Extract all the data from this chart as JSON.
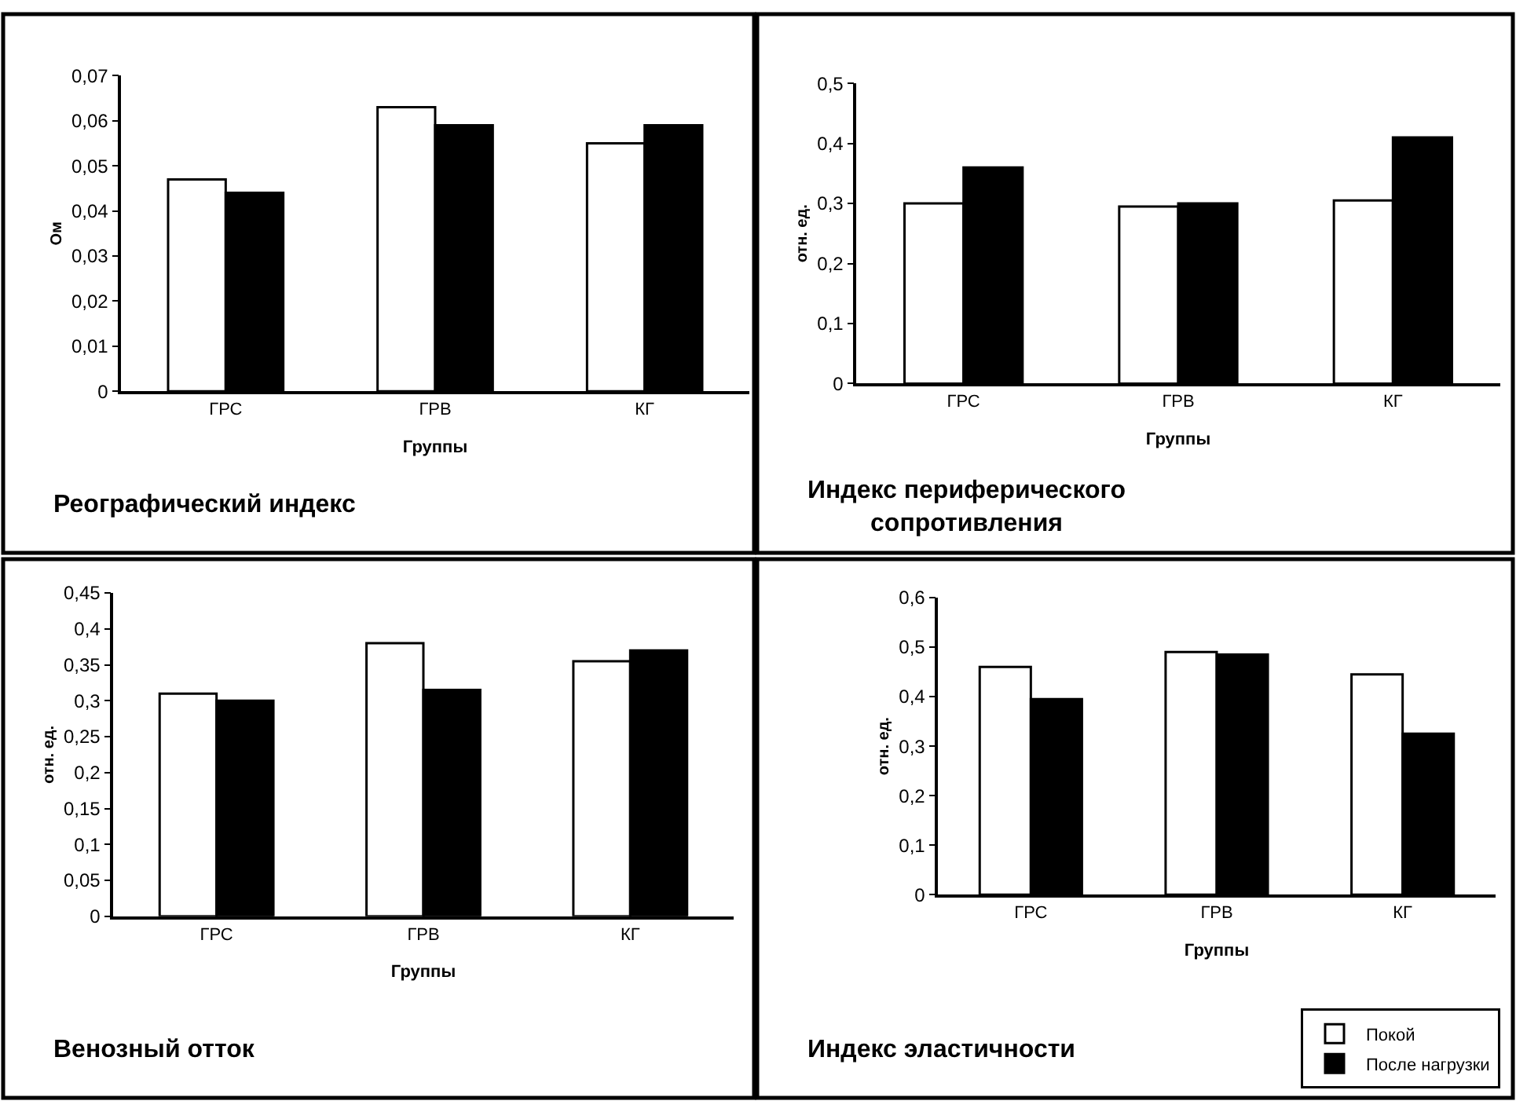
{
  "chart_data": [
    {
      "type": "bar",
      "title": "Реографический индекс",
      "xlabel": "Группы",
      "ylabel": "Ом",
      "categories": [
        "ГРС",
        "ГРВ",
        "КГ"
      ],
      "series": [
        {
          "color": "#ffffff",
          "values": [
            0.047,
            0.063,
            0.055
          ]
        },
        {
          "color": "#000000",
          "values": [
            0.044,
            0.059,
            0.059
          ]
        }
      ],
      "ylim": [
        0,
        0.07
      ],
      "yticks": [
        0,
        {
          "value": 0.01,
          "label": "0,01"
        },
        {
          "value": 0.02,
          "label": "0,02"
        },
        {
          "value": 0.03,
          "label": "0,03"
        },
        {
          "value": 0.04,
          "label": "0,04"
        },
        {
          "value": 0.05,
          "label": "0,05"
        },
        {
          "value": 0.06,
          "label": "0,06"
        },
        {
          "value": 0.07,
          "label": "0,07"
        }
      ],
      "grid": false
    },
    {
      "type": "bar",
      "title": "Индекс периферического\nсопротивления",
      "xlabel": "Группы",
      "ylabel": "отн. ед.",
      "categories": [
        "ГРС",
        "ГРВ",
        "КГ"
      ],
      "series": [
        {
          "color": "#ffffff",
          "values": [
            0.3,
            0.295,
            0.305
          ]
        },
        {
          "color": "#000000",
          "values": [
            0.36,
            0.3,
            0.41
          ]
        }
      ],
      "ylim": [
        0,
        0.5
      ],
      "yticks": [
        0,
        {
          "value": 0.1,
          "label": "0,1"
        },
        {
          "value": 0.2,
          "label": "0,2"
        },
        {
          "value": 0.3,
          "label": "0,3"
        },
        {
          "value": 0.4,
          "label": "0,4"
        },
        {
          "value": 0.5,
          "label": "0,5"
        }
      ],
      "grid": false
    },
    {
      "type": "bar",
      "title": "Венозный отток",
      "xlabel": "Группы",
      "ylabel": "отн. ед.",
      "categories": [
        "ГРС",
        "ГРВ",
        "КГ"
      ],
      "series": [
        {
          "color": "#ffffff",
          "values": [
            0.31,
            0.38,
            0.355
          ]
        },
        {
          "color": "#000000",
          "values": [
            0.3,
            0.315,
            0.37
          ]
        }
      ],
      "ylim": [
        0,
        0.45
      ],
      "yticks": [
        0,
        {
          "value": 0.05,
          "label": "0,05"
        },
        {
          "value": 0.1,
          "label": "0,1"
        },
        {
          "value": 0.15,
          "label": "0,15"
        },
        {
          "value": 0.2,
          "label": "0,2"
        },
        {
          "value": 0.25,
          "label": "0,25"
        },
        {
          "value": 0.3,
          "label": "0,3"
        },
        {
          "value": 0.35,
          "label": "0,35"
        },
        {
          "value": 0.4,
          "label": "0,4"
        },
        {
          "value": 0.45,
          "label": "0,45"
        }
      ],
      "grid": false
    },
    {
      "type": "bar",
      "title": "Индекс эластичности",
      "xlabel": "Группы",
      "ylabel": "отн. ед.",
      "categories": [
        "ГРС",
        "ГРВ",
        "КГ"
      ],
      "series": [
        {
          "name": "Покой",
          "color": "#ffffff",
          "values": [
            0.46,
            0.49,
            0.445
          ]
        },
        {
          "name": "После нагрузки",
          "color": "#000000",
          "values": [
            0.395,
            0.485,
            0.325
          ]
        }
      ],
      "ylim": [
        0,
        0.6
      ],
      "yticks": [
        0,
        {
          "value": 0.1,
          "label": "0,1"
        },
        {
          "value": 0.2,
          "label": "0,2"
        },
        {
          "value": 0.3,
          "label": "0,3"
        },
        {
          "value": 0.4,
          "label": "0,4"
        },
        {
          "value": 0.5,
          "label": "0,5"
        },
        {
          "value": 0.6,
          "label": "0,6"
        }
      ],
      "grid": false,
      "legend": "bottom right"
    }
  ]
}
